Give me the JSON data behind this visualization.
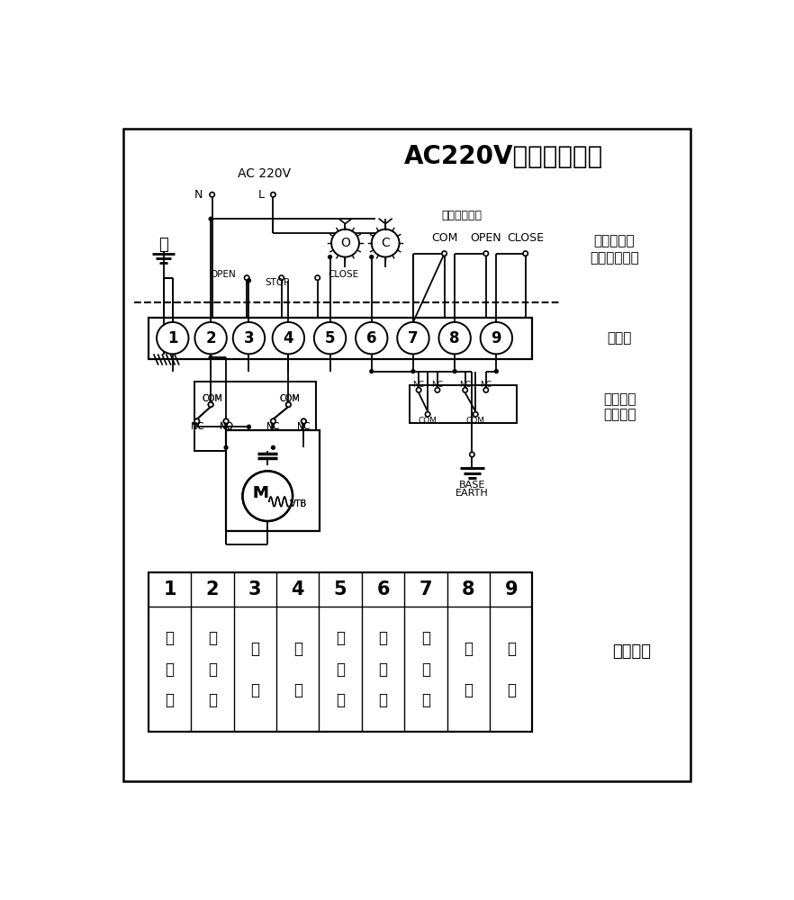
{
  "title": "AC220V开关型接线图",
  "power_label": "AC 220V",
  "wuyan_label": "（无源触点）",
  "control_room_label": "控制室接线",
  "ref_label": "（仅供参考）",
  "terminal_board_label": "端子板",
  "electric_device_label": "电动装置",
  "internal_wiring_label": "内部接线",
  "terminal_function_label": "端子功能",
  "base_label": "BASE",
  "earth_label": "EARTH",
  "N_label": "N",
  "L_label": "L",
  "terminal_numbers": [
    "1",
    "2",
    "3",
    "4",
    "5",
    "6",
    "7",
    "8",
    "9"
  ],
  "terminal_func_nums": [
    "1",
    "2",
    "3",
    "4",
    "5",
    "6",
    "7",
    "8",
    "9"
  ],
  "terminal_func_texts": [
    [
      "接",
      "地",
      "线"
    ],
    [
      "公",
      "共",
      "端"
    ],
    [
      "开",
      "阀"
    ],
    [
      "关",
      "阀"
    ],
    [
      "开",
      "指",
      "示"
    ],
    [
      "关",
      "指",
      "示"
    ],
    [
      "公",
      "共",
      "端"
    ],
    [
      "开",
      "位"
    ],
    [
      "关",
      "位"
    ]
  ],
  "bg_color": "#ffffff",
  "line_color": "#000000"
}
